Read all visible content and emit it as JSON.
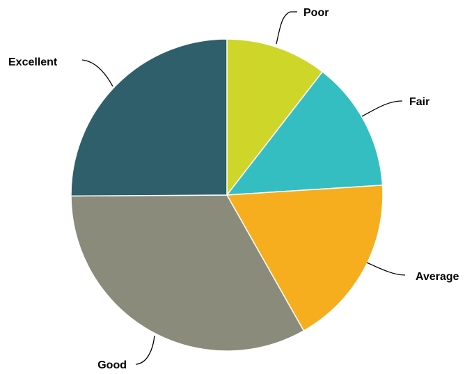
{
  "chart_data": {
    "type": "pie",
    "title": "",
    "start_angle_deg": 0,
    "direction": "clockwise",
    "slices": [
      {
        "label": "Poor",
        "value": 10.5,
        "color": "#CFD62A"
      },
      {
        "label": "Fair",
        "value": 13.5,
        "color": "#35BEC1"
      },
      {
        "label": "Average",
        "value": 17.8,
        "color": "#F6AE1F"
      },
      {
        "label": "Good",
        "value": 33.1,
        "color": "#8A8B7A"
      },
      {
        "label": "Excellent",
        "value": 25.1,
        "color": "#2F5F6B"
      }
    ],
    "legend": "none"
  }
}
